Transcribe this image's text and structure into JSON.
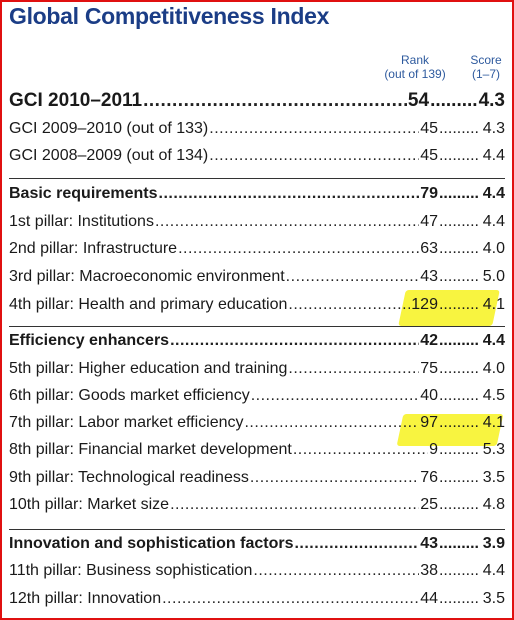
{
  "title": "Global Competitiveness Index",
  "columns": {
    "rank_label": "Rank",
    "rank_sub": "(out of 139)",
    "score_label": "Score",
    "score_sub": "(1–7)"
  },
  "rows": [
    {
      "label": "GCI 2010–2011",
      "rank": "54",
      "score": "4.3",
      "style": "big"
    },
    {
      "label": "GCI 2009–2010 (out of 133)",
      "rank": "45",
      "score": "4.3",
      "style": "normal"
    },
    {
      "label": "GCI 2008–2009 (out of 134)",
      "rank": "45",
      "score": "4.4",
      "style": "normal"
    },
    {
      "label": "Basic requirements",
      "rank": "79",
      "score": "4.4",
      "style": "bold"
    },
    {
      "label": "1st pillar: Institutions",
      "rank": "47",
      "score": "4.4",
      "style": "normal"
    },
    {
      "label": "2nd pillar: Infrastructure",
      "rank": "63",
      "score": "4.0",
      "style": "normal"
    },
    {
      "label": "3rd pillar: Macroeconomic environment",
      "rank": "43",
      "score": "5.0",
      "style": "normal"
    },
    {
      "label": "4th pillar: Health and primary education",
      "rank": "129",
      "score": "4.1",
      "style": "normal",
      "highlight": true
    },
    {
      "label": "Efficiency enhancers",
      "rank": "42",
      "score": "4.4",
      "style": "bold"
    },
    {
      "label": "5th pillar: Higher education and training",
      "rank": "75",
      "score": "4.0",
      "style": "normal"
    },
    {
      "label": "6th pillar: Goods market efficiency",
      "rank": "40",
      "score": "4.5",
      "style": "normal"
    },
    {
      "label": "7th pillar: Labor market efficiency",
      "rank": "97",
      "score": "4.1",
      "style": "normal",
      "highlight": true
    },
    {
      "label": "8th pillar: Financial market development",
      "rank": "9",
      "score": "5.3",
      "style": "normal"
    },
    {
      "label": "9th pillar: Technological readiness",
      "rank": "76",
      "score": "3.5",
      "style": "normal"
    },
    {
      "label": "10th pillar: Market size",
      "rank": "25",
      "score": "4.8",
      "style": "normal"
    },
    {
      "label": "Innovation and sophistication factors",
      "rank": "43",
      "score": "3.9",
      "style": "bold"
    },
    {
      "label": "11th pillar: Business sophistication",
      "rank": "38",
      "score": "4.4",
      "style": "normal"
    },
    {
      "label": "12th pillar: Innovation",
      "rank": "44",
      "score": "3.5",
      "style": "normal"
    }
  ],
  "colors": {
    "title": "#1b3d86",
    "header": "#2e5a9e",
    "highlight": "#f5f000",
    "border": "#e01010"
  }
}
